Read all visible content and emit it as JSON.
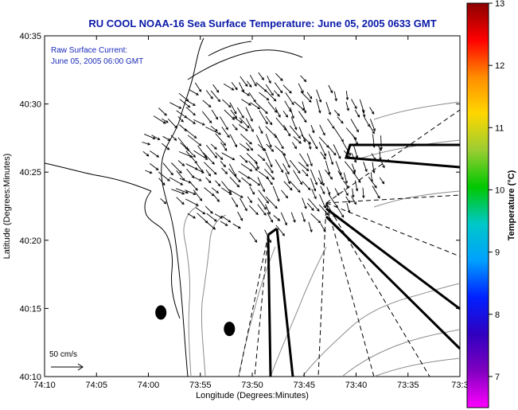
{
  "chart_data": {
    "type": "vector-field",
    "title": "RU COOL  NOAA-16  Sea Surface Temperature:  June 05, 2005 0633 GMT",
    "xlabel": "Longitude (Degrees:Minutes)",
    "ylabel": "Latitude (Degrees:Minutes)",
    "x_ticks": [
      "74:10",
      "74:05",
      "74:00",
      "73:55",
      "73:50",
      "73:45",
      "73:40",
      "73:35",
      "73:3"
    ],
    "y_ticks": [
      "40:35",
      "40:30",
      "40:25",
      "40:20",
      "40:15",
      "40:10"
    ],
    "xlim_min": [
      -74.1667,
      -73.5
    ],
    "ylim_min": [
      40.1667,
      40.5833
    ],
    "annotation_lines": [
      "Raw Surface Current:",
      "June 05, 2005 06:00 GMT"
    ],
    "scale_label": "50 cm/s",
    "colorbar": {
      "label": "Temperature (°C)",
      "range": [
        6.5,
        13
      ],
      "ticks": [
        "13",
        "12",
        "11",
        "10",
        "9",
        "8",
        "7"
      ],
      "tick_values": [
        13,
        12,
        11,
        10,
        9,
        8,
        7
      ],
      "colors": [
        "#8b0000",
        "#ff0000",
        "#ff8c00",
        "#ffd700",
        "#9acd32",
        "#00c800",
        "#00c8c8",
        "#00a0ff",
        "#0020ff",
        "#3000c0",
        "#8000c0",
        "#ff00ff"
      ]
    },
    "buoys": [
      {
        "lon": -73.98,
        "lat": 40.245
      },
      {
        "lon": -73.87,
        "lat": 40.225
      }
    ]
  }
}
